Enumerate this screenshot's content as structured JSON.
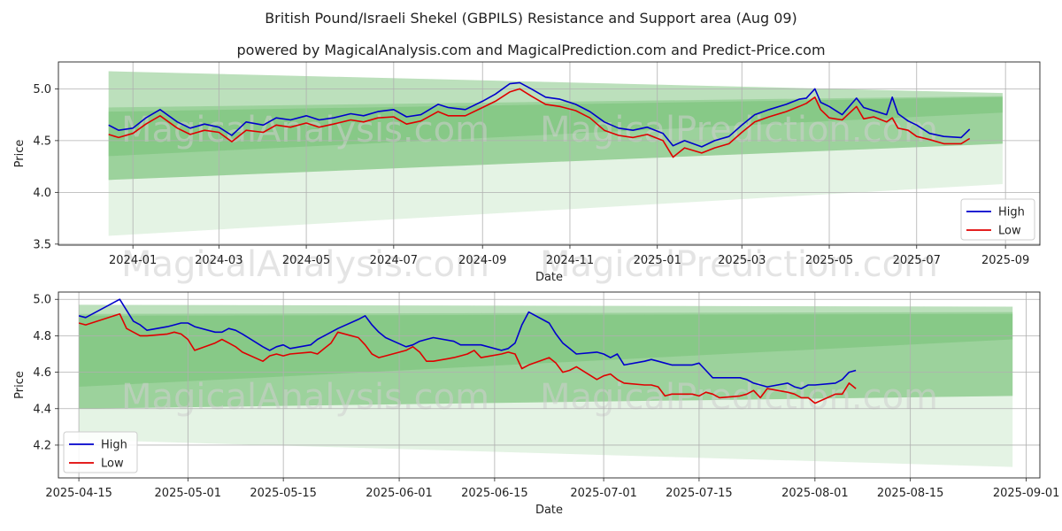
{
  "chart_data": [
    {
      "type": "line",
      "title": "British Pound/Israeli Shekel (GBPILS) Resistance and Support area (Aug 09)",
      "subtitle": "powered by MagicalAnalysis.com and MagicalPrediction.com and Predict-Price.com",
      "xlabel": "Date",
      "ylabel": "Price",
      "xlim": [
        "2023-11-10",
        "2025-09-25"
      ],
      "ylim": [
        3.49,
        5.26
      ],
      "x_ticks": [
        "2024-01",
        "2024-03",
        "2024-05",
        "2024-07",
        "2024-09",
        "2024-11",
        "2025-01",
        "2025-03",
        "2025-05",
        "2025-07",
        "2025-09"
      ],
      "y_ticks": [
        "3.5",
        "4.0",
        "4.5",
        "5.0"
      ],
      "grid": true,
      "legend": "lower right",
      "watermarks": [
        "MagicalAnalysis.com",
        "MagicalPrediction.com"
      ],
      "bands": [
        {
          "x": [
            "2023-12-15",
            "2025-08-30"
          ],
          "upper": [
            5.17,
            4.96
          ],
          "lower": [
            3.58,
            4.08
          ],
          "color": "#2ca02c",
          "opacity": 0.13
        },
        {
          "x": [
            "2023-12-15",
            "2025-08-30"
          ],
          "upper": [
            5.17,
            4.96
          ],
          "lower": [
            4.12,
            4.47
          ],
          "color": "#2ca02c",
          "opacity": 0.22
        },
        {
          "x": [
            "2023-12-15",
            "2025-08-30"
          ],
          "upper": [
            4.82,
            4.93
          ],
          "lower": [
            4.12,
            4.47
          ],
          "color": "#2ca02c",
          "opacity": 0.22
        },
        {
          "x": [
            "2023-12-15",
            "2025-08-30"
          ],
          "upper": [
            4.78,
            4.92
          ],
          "lower": [
            4.35,
            4.77
          ],
          "color": "#2ca02c",
          "opacity": 0.18
        }
      ],
      "series": [
        {
          "name": "High",
          "color": "#0000cc",
          "x": [
            "2023-12-15",
            "2023-12-22",
            "2024-01-01",
            "2024-01-10",
            "2024-01-20",
            "2024-02-01",
            "2024-02-10",
            "2024-02-20",
            "2024-03-01",
            "2024-03-10",
            "2024-03-20",
            "2024-04-01",
            "2024-04-10",
            "2024-04-20",
            "2024-05-01",
            "2024-05-10",
            "2024-05-20",
            "2024-06-01",
            "2024-06-10",
            "2024-06-20",
            "2024-07-01",
            "2024-07-10",
            "2024-07-20",
            "2024-08-01",
            "2024-08-08",
            "2024-08-20",
            "2024-09-01",
            "2024-09-10",
            "2024-09-20",
            "2024-09-27",
            "2024-10-05",
            "2024-10-15",
            "2024-10-25",
            "2024-11-05",
            "2024-11-15",
            "2024-11-25",
            "2024-12-05",
            "2024-12-15",
            "2024-12-25",
            "2025-01-05",
            "2025-01-12",
            "2025-01-20",
            "2025-02-01",
            "2025-02-10",
            "2025-02-20",
            "2025-03-01",
            "2025-03-10",
            "2025-03-20",
            "2025-04-01",
            "2025-04-10",
            "2025-04-15",
            "2025-04-21",
            "2025-04-25",
            "2025-05-01",
            "2025-05-10",
            "2025-05-20",
            "2025-05-25",
            "2025-06-01",
            "2025-06-10",
            "2025-06-14",
            "2025-06-18",
            "2025-06-25",
            "2025-07-01",
            "2025-07-10",
            "2025-07-20",
            "2025-08-01",
            "2025-08-07"
          ],
          "values": [
            4.65,
            4.6,
            4.62,
            4.72,
            4.8,
            4.68,
            4.62,
            4.66,
            4.63,
            4.55,
            4.68,
            4.65,
            4.72,
            4.7,
            4.74,
            4.7,
            4.72,
            4.76,
            4.74,
            4.78,
            4.8,
            4.73,
            4.75,
            4.85,
            4.82,
            4.8,
            4.88,
            4.95,
            5.05,
            5.06,
            5.0,
            4.92,
            4.9,
            4.85,
            4.78,
            4.68,
            4.62,
            4.6,
            4.63,
            4.57,
            4.45,
            4.5,
            4.44,
            4.5,
            4.54,
            4.65,
            4.75,
            4.8,
            4.85,
            4.9,
            4.91,
            5.0,
            4.87,
            4.83,
            4.75,
            4.91,
            4.82,
            4.79,
            4.75,
            4.92,
            4.76,
            4.69,
            4.65,
            4.57,
            4.54,
            4.53,
            4.61
          ]
        },
        {
          "name": "Low",
          "color": "#e00000",
          "x": [
            "2023-12-15",
            "2023-12-22",
            "2024-01-01",
            "2024-01-10",
            "2024-01-20",
            "2024-02-01",
            "2024-02-10",
            "2024-02-20",
            "2024-03-01",
            "2024-03-10",
            "2024-03-20",
            "2024-04-01",
            "2024-04-10",
            "2024-04-20",
            "2024-05-01",
            "2024-05-10",
            "2024-05-20",
            "2024-06-01",
            "2024-06-10",
            "2024-06-20",
            "2024-07-01",
            "2024-07-10",
            "2024-07-20",
            "2024-08-01",
            "2024-08-08",
            "2024-08-20",
            "2024-09-01",
            "2024-09-10",
            "2024-09-20",
            "2024-09-27",
            "2024-10-05",
            "2024-10-15",
            "2024-10-25",
            "2024-11-05",
            "2024-11-15",
            "2024-11-25",
            "2024-12-05",
            "2024-12-15",
            "2024-12-25",
            "2025-01-05",
            "2025-01-12",
            "2025-01-20",
            "2025-02-01",
            "2025-02-10",
            "2025-02-20",
            "2025-03-01",
            "2025-03-10",
            "2025-03-20",
            "2025-04-01",
            "2025-04-10",
            "2025-04-15",
            "2025-04-21",
            "2025-04-25",
            "2025-05-01",
            "2025-05-10",
            "2025-05-20",
            "2025-05-25",
            "2025-06-01",
            "2025-06-10",
            "2025-06-14",
            "2025-06-18",
            "2025-06-25",
            "2025-07-01",
            "2025-07-10",
            "2025-07-20",
            "2025-08-01",
            "2025-08-07"
          ],
          "values": [
            4.56,
            4.53,
            4.57,
            4.66,
            4.74,
            4.62,
            4.56,
            4.6,
            4.58,
            4.49,
            4.6,
            4.58,
            4.65,
            4.63,
            4.67,
            4.63,
            4.66,
            4.7,
            4.68,
            4.72,
            4.73,
            4.66,
            4.69,
            4.78,
            4.74,
            4.74,
            4.82,
            4.88,
            4.97,
            5.0,
            4.93,
            4.85,
            4.83,
            4.79,
            4.72,
            4.6,
            4.55,
            4.53,
            4.56,
            4.5,
            4.34,
            4.43,
            4.38,
            4.43,
            4.47,
            4.58,
            4.68,
            4.73,
            4.78,
            4.83,
            4.86,
            4.92,
            4.8,
            4.72,
            4.7,
            4.83,
            4.71,
            4.73,
            4.68,
            4.72,
            4.62,
            4.6,
            4.54,
            4.51,
            4.47,
            4.47,
            4.52
          ]
        }
      ]
    },
    {
      "type": "line",
      "xlabel": "Date",
      "ylabel": "Price",
      "xlim": [
        "2025-04-12",
        "2025-09-03"
      ],
      "ylim": [
        4.02,
        5.04
      ],
      "x_ticks": [
        "2025-04-15",
        "2025-05-01",
        "2025-05-15",
        "2025-06-01",
        "2025-06-15",
        "2025-07-01",
        "2025-07-15",
        "2025-08-01",
        "2025-08-15",
        "2025-09-01"
      ],
      "y_ticks": [
        "4.2",
        "4.4",
        "4.6",
        "4.8",
        "5.0"
      ],
      "grid": true,
      "legend": "lower left",
      "watermarks": [
        "MagicalAnalysis.com",
        "MagicalPrediction.com"
      ],
      "bands": [
        {
          "x": [
            "2025-04-15",
            "2025-08-30"
          ],
          "upper": [
            4.97,
            4.96
          ],
          "lower": [
            4.23,
            4.08
          ],
          "color": "#2ca02c",
          "opacity": 0.13
        },
        {
          "x": [
            "2025-04-15",
            "2025-08-30"
          ],
          "upper": [
            4.97,
            4.96
          ],
          "lower": [
            4.4,
            4.47
          ],
          "color": "#2ca02c",
          "opacity": 0.22
        },
        {
          "x": [
            "2025-04-15",
            "2025-08-30"
          ],
          "upper": [
            4.92,
            4.93
          ],
          "lower": [
            4.4,
            4.47
          ],
          "color": "#2ca02c",
          "opacity": 0.22
        },
        {
          "x": [
            "2025-04-15",
            "2025-08-30"
          ],
          "upper": [
            4.91,
            4.92
          ],
          "lower": [
            4.52,
            4.78
          ],
          "color": "#2ca02c",
          "opacity": 0.18
        }
      ],
      "series": [
        {
          "name": "High",
          "color": "#0000cc",
          "x": [
            "2025-04-15",
            "2025-04-16",
            "2025-04-21",
            "2025-04-22",
            "2025-04-23",
            "2025-04-24",
            "2025-04-25",
            "2025-04-28",
            "2025-04-29",
            "2025-04-30",
            "2025-05-01",
            "2025-05-02",
            "2025-05-05",
            "2025-05-06",
            "2025-05-07",
            "2025-05-08",
            "2025-05-09",
            "2025-05-12",
            "2025-05-13",
            "2025-05-14",
            "2025-05-15",
            "2025-05-16",
            "2025-05-19",
            "2025-05-20",
            "2025-05-21",
            "2025-05-22",
            "2025-05-23",
            "2025-05-26",
            "2025-05-27",
            "2025-05-28",
            "2025-05-29",
            "2025-05-30",
            "2025-06-02",
            "2025-06-03",
            "2025-06-04",
            "2025-06-05",
            "2025-06-06",
            "2025-06-09",
            "2025-06-10",
            "2025-06-11",
            "2025-06-12",
            "2025-06-13",
            "2025-06-16",
            "2025-06-17",
            "2025-06-18",
            "2025-06-19",
            "2025-06-20",
            "2025-06-23",
            "2025-06-24",
            "2025-06-25",
            "2025-06-26",
            "2025-06-27",
            "2025-06-30",
            "2025-07-01",
            "2025-07-02",
            "2025-07-03",
            "2025-07-04",
            "2025-07-07",
            "2025-07-08",
            "2025-07-09",
            "2025-07-10",
            "2025-07-11",
            "2025-07-14",
            "2025-07-15",
            "2025-07-16",
            "2025-07-17",
            "2025-07-18",
            "2025-07-21",
            "2025-07-22",
            "2025-07-23",
            "2025-07-24",
            "2025-07-25",
            "2025-07-28",
            "2025-07-29",
            "2025-07-30",
            "2025-07-31",
            "2025-08-01",
            "2025-08-04",
            "2025-08-05",
            "2025-08-06",
            "2025-08-07"
          ],
          "values": [
            4.91,
            4.9,
            5.0,
            4.94,
            4.88,
            4.86,
            4.83,
            4.85,
            4.86,
            4.87,
            4.87,
            4.85,
            4.82,
            4.82,
            4.84,
            4.83,
            4.81,
            4.74,
            4.72,
            4.74,
            4.75,
            4.73,
            4.75,
            4.78,
            4.8,
            4.82,
            4.84,
            4.89,
            4.91,
            4.86,
            4.82,
            4.79,
            4.74,
            4.75,
            4.77,
            4.78,
            4.79,
            4.77,
            4.75,
            4.75,
            4.75,
            4.75,
            4.72,
            4.73,
            4.76,
            4.86,
            4.93,
            4.87,
            4.81,
            4.76,
            4.73,
            4.7,
            4.71,
            4.7,
            4.68,
            4.7,
            4.64,
            4.66,
            4.67,
            4.66,
            4.65,
            4.64,
            4.64,
            4.65,
            4.61,
            4.57,
            4.57,
            4.57,
            4.56,
            4.54,
            4.53,
            4.52,
            4.54,
            4.52,
            4.51,
            4.53,
            4.53,
            4.54,
            4.56,
            4.6,
            4.61
          ]
        },
        {
          "name": "Low",
          "color": "#e00000",
          "x": [
            "2025-04-15",
            "2025-04-16",
            "2025-04-21",
            "2025-04-22",
            "2025-04-23",
            "2025-04-24",
            "2025-04-25",
            "2025-04-28",
            "2025-04-29",
            "2025-04-30",
            "2025-05-01",
            "2025-05-02",
            "2025-05-05",
            "2025-05-06",
            "2025-05-07",
            "2025-05-08",
            "2025-05-09",
            "2025-05-12",
            "2025-05-13",
            "2025-05-14",
            "2025-05-15",
            "2025-05-16",
            "2025-05-19",
            "2025-05-20",
            "2025-05-21",
            "2025-05-22",
            "2025-05-23",
            "2025-05-26",
            "2025-05-27",
            "2025-05-28",
            "2025-05-29",
            "2025-05-30",
            "2025-06-02",
            "2025-06-03",
            "2025-06-04",
            "2025-06-05",
            "2025-06-06",
            "2025-06-09",
            "2025-06-10",
            "2025-06-11",
            "2025-06-12",
            "2025-06-13",
            "2025-06-16",
            "2025-06-17",
            "2025-06-18",
            "2025-06-19",
            "2025-06-20",
            "2025-06-23",
            "2025-06-24",
            "2025-06-25",
            "2025-06-26",
            "2025-06-27",
            "2025-06-30",
            "2025-07-01",
            "2025-07-02",
            "2025-07-03",
            "2025-07-04",
            "2025-07-07",
            "2025-07-08",
            "2025-07-09",
            "2025-07-10",
            "2025-07-11",
            "2025-07-14",
            "2025-07-15",
            "2025-07-16",
            "2025-07-17",
            "2025-07-18",
            "2025-07-21",
            "2025-07-22",
            "2025-07-23",
            "2025-07-24",
            "2025-07-25",
            "2025-07-28",
            "2025-07-29",
            "2025-07-30",
            "2025-07-31",
            "2025-08-01",
            "2025-08-04",
            "2025-08-05",
            "2025-08-06",
            "2025-08-07"
          ],
          "values": [
            4.87,
            4.86,
            4.92,
            4.84,
            4.82,
            4.8,
            4.8,
            4.81,
            4.82,
            4.81,
            4.78,
            4.72,
            4.76,
            4.78,
            4.76,
            4.74,
            4.71,
            4.66,
            4.69,
            4.7,
            4.69,
            4.7,
            4.71,
            4.7,
            4.73,
            4.76,
            4.82,
            4.79,
            4.75,
            4.7,
            4.68,
            4.69,
            4.72,
            4.74,
            4.71,
            4.66,
            4.66,
            4.68,
            4.69,
            4.7,
            4.72,
            4.68,
            4.7,
            4.71,
            4.7,
            4.62,
            4.64,
            4.68,
            4.65,
            4.6,
            4.61,
            4.63,
            4.56,
            4.58,
            4.59,
            4.56,
            4.54,
            4.53,
            4.53,
            4.52,
            4.47,
            4.48,
            4.48,
            4.47,
            4.49,
            4.48,
            4.46,
            4.47,
            4.48,
            4.5,
            4.46,
            4.51,
            4.49,
            4.48,
            4.46,
            4.46,
            4.43,
            4.48,
            4.48,
            4.54,
            4.51
          ]
        }
      ]
    }
  ]
}
